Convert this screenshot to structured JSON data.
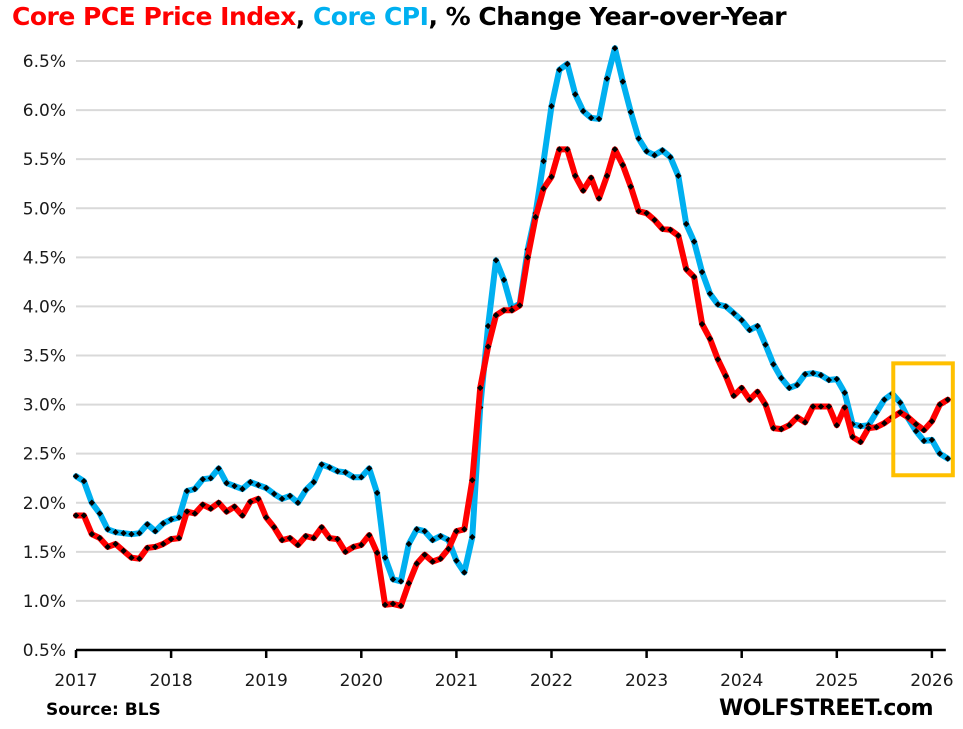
{
  "chart_data": {
    "type": "line",
    "title_parts": [
      {
        "text": "Core PCE Price Index",
        "color": "#ff0000"
      },
      {
        "text": ", ",
        "color": "#000000"
      },
      {
        "text": "Core CPI",
        "color": "#00b0f0"
      },
      {
        "text": ", % Change Year-over-Year",
        "color": "#000000"
      }
    ],
    "xlabel": "",
    "ylabel": "",
    "x_start": "2017-01",
    "x_tick_labels": [
      "2017",
      "2018",
      "2019",
      "2020",
      "2021",
      "2022",
      "2023",
      "2024",
      "2025",
      "2026"
    ],
    "y_tick_labels": [
      "0.5%",
      "1.0%",
      "1.5%",
      "2.0%",
      "2.5%",
      "3.0%",
      "3.5%",
      "4.0%",
      "4.5%",
      "5.0%",
      "5.5%",
      "6.0%",
      "6.5%"
    ],
    "ylim": [
      0.5,
      6.5
    ],
    "xlim": [
      "2017-01",
      "2026-02"
    ],
    "grid": "horizontal",
    "series": [
      {
        "name": "Core CPI",
        "color": "#00b0f0",
        "marker_color": "#000000",
        "values": [
          2.27,
          2.22,
          2.0,
          1.89,
          1.73,
          1.7,
          1.69,
          1.68,
          1.69,
          1.78,
          1.71,
          1.79,
          1.83,
          1.85,
          2.12,
          2.14,
          2.24,
          2.25,
          2.35,
          2.2,
          2.17,
          2.14,
          2.21,
          2.18,
          2.15,
          2.09,
          2.04,
          2.07,
          2.0,
          2.13,
          2.21,
          2.39,
          2.36,
          2.32,
          2.31,
          2.26,
          2.26,
          2.35,
          2.1,
          1.44,
          1.22,
          1.2,
          1.58,
          1.73,
          1.71,
          1.62,
          1.66,
          1.62,
          1.41,
          1.29,
          1.65,
          2.97,
          3.8,
          4.47,
          4.27,
          3.98,
          4.03,
          4.58,
          4.95,
          5.48,
          6.04,
          6.41,
          6.47,
          6.16,
          5.99,
          5.92,
          5.91,
          6.32,
          6.63,
          6.29,
          5.98,
          5.71,
          5.58,
          5.54,
          5.59,
          5.52,
          5.33,
          4.84,
          4.66,
          4.35,
          4.13,
          4.02,
          4.0,
          3.93,
          3.86,
          3.76,
          3.8,
          3.61,
          3.41,
          3.27,
          3.17,
          3.2,
          3.31,
          3.32,
          3.3,
          3.25,
          3.26,
          3.12,
          2.8,
          2.78,
          2.79,
          2.92,
          3.05,
          3.11,
          3.02,
          2.86,
          2.73,
          2.63,
          2.64,
          2.5,
          2.45
        ]
      },
      {
        "name": "Core PCE Price Index",
        "color": "#ff0000",
        "marker_color": "#000000",
        "values": [
          1.87,
          1.87,
          1.68,
          1.64,
          1.55,
          1.58,
          1.51,
          1.44,
          1.43,
          1.54,
          1.55,
          1.58,
          1.63,
          1.64,
          1.91,
          1.89,
          1.98,
          1.94,
          2.0,
          1.91,
          1.96,
          1.87,
          2.01,
          2.04,
          1.85,
          1.75,
          1.62,
          1.64,
          1.57,
          1.66,
          1.64,
          1.75,
          1.64,
          1.63,
          1.5,
          1.55,
          1.57,
          1.67,
          1.49,
          0.96,
          0.97,
          0.95,
          1.18,
          1.38,
          1.47,
          1.4,
          1.43,
          1.53,
          1.71,
          1.73,
          2.23,
          3.17,
          3.59,
          3.91,
          3.96,
          3.96,
          4.01,
          4.5,
          4.91,
          5.2,
          5.32,
          5.6,
          5.6,
          5.33,
          5.18,
          5.31,
          5.1,
          5.33,
          5.6,
          5.44,
          5.22,
          4.97,
          4.95,
          4.88,
          4.79,
          4.78,
          4.72,
          4.38,
          4.3,
          3.82,
          3.67,
          3.46,
          3.29,
          3.09,
          3.17,
          3.05,
          3.13,
          3.0,
          2.76,
          2.75,
          2.79,
          2.87,
          2.82,
          2.98,
          2.98,
          2.98,
          2.79,
          2.97,
          2.67,
          2.62,
          2.76,
          2.77,
          2.81,
          2.87,
          2.92,
          2.87,
          2.8,
          2.74,
          2.83,
          3.0,
          3.05
        ]
      }
    ],
    "annotations": [
      {
        "type": "highlight-box",
        "color": "#ffc000",
        "x_range": [
          "2025-08",
          "2026-02"
        ],
        "y_range": [
          2.28,
          3.42
        ]
      }
    ]
  },
  "footer": {
    "source": "Source: BLS",
    "brand": "WOLFSTREET.com"
  }
}
